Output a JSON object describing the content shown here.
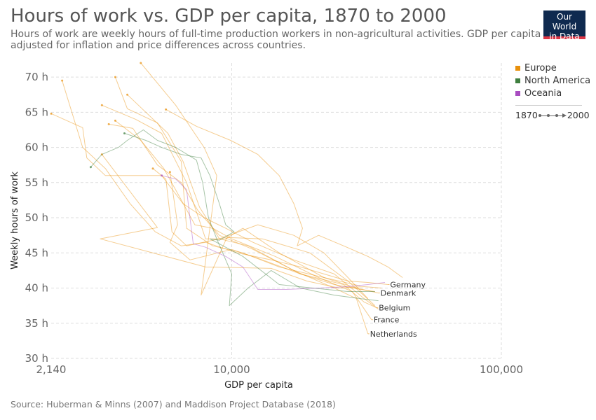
{
  "title": "Hours of work vs. GDP per capita, 1870 to 2000",
  "subtitle": "Hours of work are weekly hours of full-time production workers in non-agricultural activities. GDP per capita is adjusted for inflation and price differences across countries.",
  "logo": {
    "line1": "Our World",
    "line2": "in Data"
  },
  "source": "Source: Huberman & Minns (2007) and Maddison Project Database (2018)",
  "legend": {
    "items": [
      {
        "label": "Europe",
        "color": "#e8900c"
      },
      {
        "label": "North America",
        "color": "#3f7f3f"
      },
      {
        "label": "Oceania",
        "color": "#a84cc0"
      }
    ],
    "time_start": "1870",
    "time_end": "2000"
  },
  "chart_data": {
    "type": "scatter",
    "xlabel": "GDP per capita",
    "ylabel": "Weekly hours of work",
    "x_scale": "log",
    "xlim": [
      2140,
      100000
    ],
    "ylim": [
      30,
      72
    ],
    "x_ticks": [
      {
        "value": 2140,
        "label": "2,140"
      },
      {
        "value": 10000,
        "label": "10,000"
      },
      {
        "value": 100000,
        "label": "100,000"
      }
    ],
    "y_ticks": [
      {
        "value": 30,
        "label": "30 h"
      },
      {
        "value": 35,
        "label": "35 h"
      },
      {
        "value": 40,
        "label": "40 h"
      },
      {
        "value": 45,
        "label": "45 h"
      },
      {
        "value": 50,
        "label": "50 h"
      },
      {
        "value": 55,
        "label": "55 h"
      },
      {
        "value": 60,
        "label": "60 h"
      },
      {
        "value": 65,
        "label": "65 h"
      },
      {
        "value": 70,
        "label": "70 h"
      }
    ],
    "grid": true,
    "legend_position": "right",
    "series": [
      {
        "name": "Germany",
        "region": "Europe",
        "label": true,
        "points": [
          [
            2350,
            69.5
          ],
          [
            2800,
            60
          ],
          [
            3400,
            57
          ],
          [
            4200,
            52
          ],
          [
            5200,
            48
          ],
          [
            6500,
            46
          ],
          [
            8000,
            46.5
          ],
          [
            10500,
            45
          ],
          [
            14000,
            44
          ],
          [
            18000,
            43
          ],
          [
            22000,
            42
          ],
          [
            27000,
            41
          ],
          [
            32000,
            40.8
          ],
          [
            38000,
            40.5
          ]
        ]
      },
      {
        "name": "Denmark",
        "region": "Europe",
        "label": true,
        "points": [
          [
            3300,
            66
          ],
          [
            4400,
            64
          ],
          [
            5500,
            62
          ],
          [
            6800,
            55
          ],
          [
            8000,
            47
          ],
          [
            9500,
            47
          ],
          [
            11000,
            48.5
          ],
          [
            15000,
            45
          ],
          [
            22000,
            41.5
          ],
          [
            29000,
            40
          ],
          [
            35000,
            39.3
          ]
        ]
      },
      {
        "name": "Belgium",
        "region": "Europe",
        "label": true,
        "points": [
          [
            3500,
            63.3
          ],
          [
            4300,
            62.7
          ],
          [
            5300,
            57.5
          ],
          [
            6500,
            55
          ],
          [
            7500,
            51
          ],
          [
            9000,
            47.5
          ],
          [
            12000,
            45.5
          ],
          [
            18000,
            42
          ],
          [
            26000,
            40.5
          ],
          [
            31000,
            38
          ],
          [
            34500,
            37.2
          ]
        ]
      },
      {
        "name": "France",
        "region": "Europe",
        "label": true,
        "points": [
          [
            3700,
            63.8
          ],
          [
            4600,
            61
          ],
          [
            5600,
            57
          ],
          [
            6400,
            53
          ],
          [
            7300,
            49
          ],
          [
            8500,
            48.5
          ],
          [
            10000,
            47
          ],
          [
            14500,
            44.5
          ],
          [
            21000,
            41.5
          ],
          [
            28000,
            39.5
          ],
          [
            33000,
            35.5
          ]
        ]
      },
      {
        "name": "Netherlands",
        "region": "Europe",
        "label": true,
        "points": [
          [
            4100,
            67.5
          ],
          [
            4800,
            65
          ],
          [
            5800,
            62
          ],
          [
            6600,
            58
          ],
          [
            7600,
            51.5
          ],
          [
            9000,
            47
          ],
          [
            11500,
            46
          ],
          [
            17000,
            42.5
          ],
          [
            24000,
            40
          ],
          [
            29000,
            38.5
          ],
          [
            32000,
            33.5
          ]
        ]
      },
      {
        "name": "",
        "region": "Europe",
        "label": false,
        "points": [
          [
            2140,
            64.8
          ],
          [
            2800,
            62.8
          ],
          [
            2900,
            58.5
          ],
          [
            3400,
            56
          ],
          [
            4200,
            56
          ],
          [
            5500,
            56
          ],
          [
            6600,
            52
          ],
          [
            7900,
            50
          ],
          [
            9500,
            48.5
          ],
          [
            12000,
            46.5
          ],
          [
            17000,
            44
          ],
          [
            24000,
            42
          ],
          [
            31000,
            38.5
          ],
          [
            35000,
            37
          ]
        ]
      },
      {
        "name": "",
        "region": "Europe",
        "label": false,
        "points": [
          [
            3300,
            59
          ],
          [
            5300,
            48.6
          ],
          [
            3250,
            47
          ],
          [
            8000,
            43
          ],
          [
            14000,
            42.8
          ],
          [
            19000,
            41
          ],
          [
            25000,
            40
          ],
          [
            31000,
            40.2
          ],
          [
            36000,
            40
          ]
        ]
      },
      {
        "name": "",
        "region": "Europe",
        "label": false,
        "points": [
          [
            4600,
            72
          ],
          [
            6200,
            66
          ],
          [
            7900,
            60
          ],
          [
            8800,
            56
          ],
          [
            7700,
            39
          ],
          [
            9600,
            47.2
          ],
          [
            13000,
            47
          ],
          [
            19500,
            45
          ],
          [
            27000,
            41
          ],
          [
            34000,
            37.5
          ]
        ]
      },
      {
        "name": "",
        "region": "Europe",
        "label": false,
        "points": [
          [
            3700,
            70
          ],
          [
            4100,
            65.5
          ],
          [
            5300,
            63.5
          ],
          [
            6500,
            58
          ],
          [
            6800,
            48.5
          ],
          [
            8500,
            46
          ],
          [
            11000,
            45
          ],
          [
            15000,
            43
          ],
          [
            22000,
            41.5
          ],
          [
            30000,
            40.3
          ]
        ]
      },
      {
        "name": "",
        "region": "Europe",
        "label": false,
        "points": [
          [
            5700,
            65.4
          ],
          [
            7400,
            63
          ],
          [
            9900,
            61
          ],
          [
            12500,
            59
          ],
          [
            15000,
            56
          ],
          [
            17000,
            52
          ],
          [
            18300,
            48.5
          ],
          [
            17500,
            46
          ],
          [
            21000,
            47.5
          ],
          [
            26000,
            46
          ],
          [
            32000,
            44.5
          ],
          [
            38000,
            43
          ],
          [
            43000,
            41.5
          ]
        ]
      },
      {
        "name": "",
        "region": "Europe",
        "label": false,
        "points": [
          [
            5900,
            56.5
          ],
          [
            6300,
            49
          ],
          [
            5900,
            46.5
          ],
          [
            7000,
            44
          ],
          [
            10000,
            45.5
          ],
          [
            13000,
            44
          ],
          [
            18000,
            42
          ],
          [
            24000,
            40.5
          ],
          [
            30000,
            39.8
          ],
          [
            34000,
            39.5
          ]
        ]
      },
      {
        "name": "",
        "region": "Europe",
        "label": false,
        "points": [
          [
            5100,
            57
          ],
          [
            5700,
            55.5
          ],
          [
            6000,
            48
          ],
          [
            6800,
            46
          ],
          [
            9000,
            47
          ],
          [
            12500,
            49
          ],
          [
            17000,
            47.5
          ],
          [
            22000,
            45
          ],
          [
            27000,
            41.5
          ],
          [
            32000,
            38.5
          ]
        ]
      },
      {
        "name": "",
        "region": "North America",
        "label": false,
        "points": [
          [
            3000,
            57.2
          ],
          [
            3300,
            59
          ],
          [
            3800,
            60
          ],
          [
            4100,
            61
          ],
          [
            4700,
            62.5
          ],
          [
            5300,
            61
          ],
          [
            6200,
            60
          ],
          [
            7400,
            58.2
          ],
          [
            7800,
            55
          ],
          [
            8200,
            50
          ],
          [
            8800,
            47
          ],
          [
            10000,
            42
          ],
          [
            9800,
            37.5
          ],
          [
            11500,
            40
          ],
          [
            14000,
            42.5
          ],
          [
            18000,
            40
          ],
          [
            24000,
            39
          ],
          [
            30000,
            38.5
          ],
          [
            35000,
            38.2
          ]
        ]
      },
      {
        "name": "",
        "region": "North America",
        "label": false,
        "points": [
          [
            4000,
            62
          ],
          [
            4800,
            61
          ],
          [
            5500,
            60
          ],
          [
            6500,
            59
          ],
          [
            7700,
            58.5
          ],
          [
            8300,
            56
          ],
          [
            9000,
            52
          ],
          [
            9500,
            49
          ],
          [
            10200,
            48
          ],
          [
            9000,
            46.8
          ],
          [
            8300,
            47
          ],
          [
            11000,
            44.5
          ],
          [
            15000,
            40.5
          ],
          [
            20000,
            40
          ],
          [
            27000,
            39.5
          ],
          [
            34000,
            39.5
          ]
        ]
      },
      {
        "name": "",
        "region": "Oceania",
        "label": false,
        "points": [
          [
            5500,
            56
          ],
          [
            6200,
            55.5
          ],
          [
            6800,
            54
          ],
          [
            7000,
            50
          ],
          [
            7200,
            46.3
          ],
          [
            8000,
            45.8
          ],
          [
            9500,
            44.5
          ],
          [
            11000,
            43
          ],
          [
            12500,
            39.8
          ],
          [
            16000,
            39.8
          ],
          [
            21000,
            40
          ],
          [
            27000,
            40.2
          ],
          [
            32000,
            40.5
          ],
          [
            37000,
            40.8
          ]
        ]
      }
    ]
  }
}
